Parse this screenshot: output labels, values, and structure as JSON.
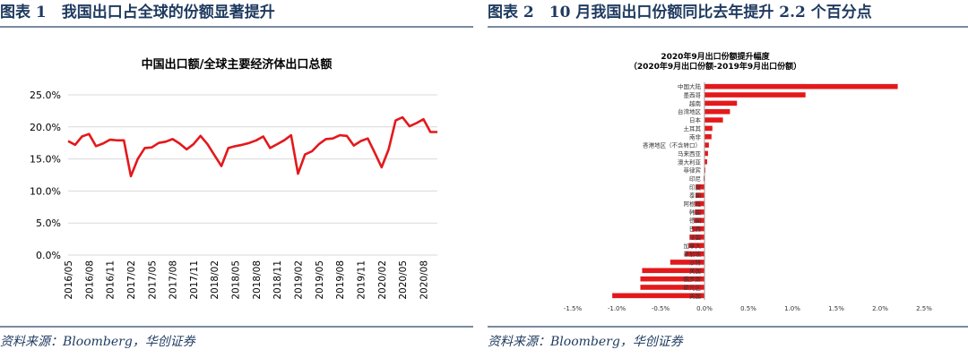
{
  "panel1": {
    "figure_title": "图表 1　我国出口占全球的份额显著提升",
    "source": "资料来源：Bloomberg，华创证券"
  },
  "panel2": {
    "figure_title": "图表 2　10 月我国出口份额同比去年提升 2.2 个百分点",
    "source": "资料来源：Bloomberg，华创证券"
  },
  "chart_data": [
    {
      "type": "line",
      "title": "中国出口额/全球主要经济体出口总额",
      "xlabel": "",
      "ylabel": "",
      "ylim": [
        0,
        25
      ],
      "y_ticks": [
        "0.0%",
        "5.0%",
        "10.0%",
        "15.0%",
        "20.0%",
        "25.0%"
      ],
      "x_ticks": [
        "2016/05",
        "2016/08",
        "2016/11",
        "2017/02",
        "2017/05",
        "2017/08",
        "2017/11",
        "2018/02",
        "2018/05",
        "2018/08",
        "2018/11",
        "2019/02",
        "2019/05",
        "2019/08",
        "2019/11",
        "2020/02",
        "2020/05",
        "2020/08"
      ],
      "color": "#e3191c",
      "series": [
        {
          "values": [
            17.8,
            17.2,
            18.5,
            18.9,
            17.0,
            17.4,
            18.0,
            17.9,
            17.9,
            12.3,
            15.0,
            16.7,
            16.8,
            17.5,
            17.7,
            18.1,
            17.4,
            16.5,
            17.3,
            18.6,
            17.3,
            15.6,
            13.9,
            16.7,
            17.0,
            17.2,
            17.5,
            17.9,
            18.5,
            16.7,
            17.3,
            17.9,
            18.7,
            12.7,
            15.7,
            16.2,
            17.3,
            18.1,
            18.2,
            18.7,
            18.6,
            17.1,
            17.8,
            18.2,
            16.0,
            13.7,
            16.5,
            21.0,
            21.5,
            20.1,
            20.6,
            21.2,
            19.2,
            19.2
          ]
        }
      ]
    },
    {
      "type": "bar",
      "orientation": "horizontal",
      "title": "2020年9月出口份额提升幅度",
      "subtitle": "（2020年9月出口份额-2019年9月出口份额）",
      "xlim": [
        -1.5,
        2.5
      ],
      "x_ticks": [
        "-1.5%",
        "-1.0%",
        "-0.5%",
        "0.0%",
        "0.5%",
        "1.0%",
        "1.5%",
        "2.0%",
        "2.5%"
      ],
      "color": "#e3191c",
      "categories": [
        "中国大陆",
        "墨西哥",
        "越南",
        "台湾地区",
        "日本",
        "土耳其",
        "南非",
        "香港地区（不含转口）",
        "马来西亚",
        "澳大利亚",
        "菲律宾",
        "印尼",
        "印度",
        "泰国",
        "阿根廷",
        "韩国",
        "德国",
        "巴西",
        "法国",
        "加拿大",
        "新加坡",
        "沙特",
        "美国",
        "俄罗斯",
        "欧元区",
        "英国"
      ],
      "values": [
        2.2,
        1.15,
        0.37,
        0.29,
        0.21,
        0.09,
        0.08,
        0.05,
        0.04,
        0.03,
        0.01,
        -0.01,
        -0.1,
        -0.1,
        -0.11,
        -0.11,
        -0.12,
        -0.14,
        -0.17,
        -0.18,
        -0.22,
        -0.39,
        -0.71,
        -0.73,
        -0.73,
        -1.05
      ]
    }
  ]
}
